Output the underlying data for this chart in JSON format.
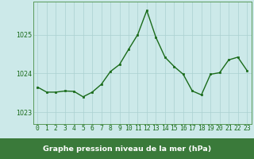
{
  "hours": [
    0,
    1,
    2,
    3,
    4,
    5,
    6,
    7,
    8,
    9,
    10,
    11,
    12,
    13,
    14,
    15,
    16,
    17,
    18,
    19,
    20,
    21,
    22,
    23
  ],
  "pressure": [
    1023.65,
    1023.52,
    1023.52,
    1023.55,
    1023.54,
    1023.4,
    1023.52,
    1023.72,
    1024.05,
    1024.23,
    1024.62,
    1025.0,
    1025.62,
    1024.93,
    1024.42,
    1024.18,
    1023.98,
    1023.55,
    1023.45,
    1023.98,
    1024.02,
    1024.35,
    1024.42,
    1024.08
  ],
  "line_color": "#1a6b1a",
  "marker": "s",
  "markersize": 2.0,
  "linewidth": 1.0,
  "bg_color": "#cce9e9",
  "grid_color": "#aad0d0",
  "xlabel": "Graphe pression niveau de la mer (hPa)",
  "xlabel_fontsize": 6.8,
  "xlabel_color": "#1a6b1a",
  "ytick_labels": [
    "1023",
    "1024",
    "1025"
  ],
  "ytick_vals": [
    1023,
    1024,
    1025
  ],
  "ylim": [
    1022.7,
    1025.85
  ],
  "xlim": [
    -0.5,
    23.5
  ],
  "tick_fontsize": 5.8,
  "tick_color": "#1a6b1a",
  "axis_color": "#5a9a5a",
  "bottom_bar_color": "#3a7a3a",
  "bottom_bar_height": 0.13
}
